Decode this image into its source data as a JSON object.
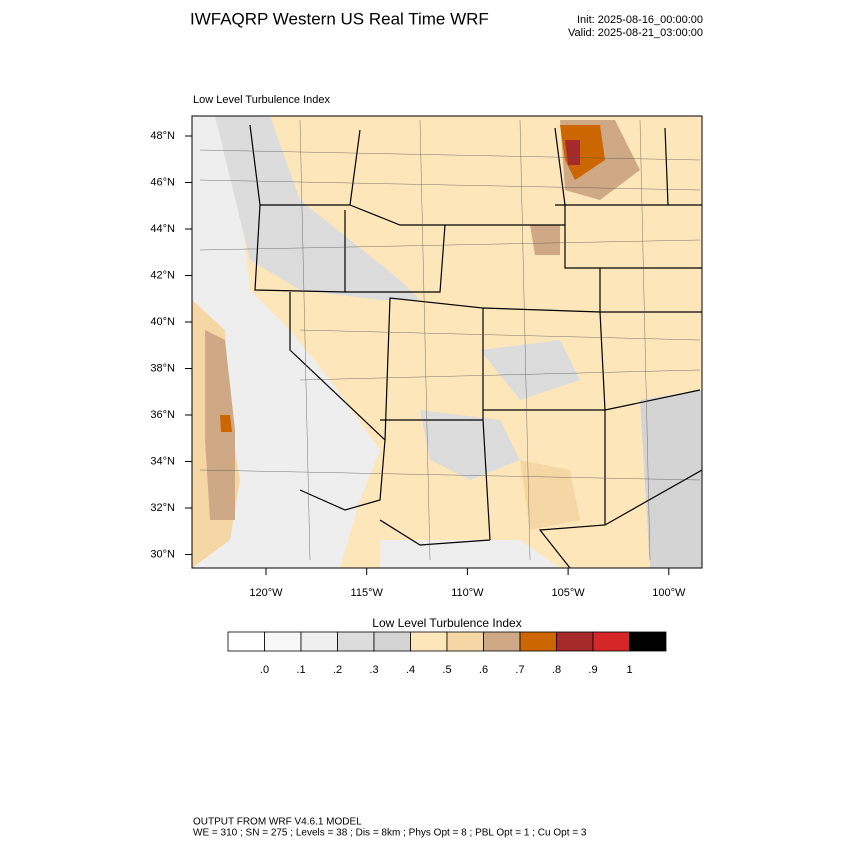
{
  "header": {
    "title": "IWFAQRP Western US Real Time WRF",
    "init": "Init: 2025-08-16_00:00:00",
    "valid": "Valid: 2025-08-21_03:00:00"
  },
  "map": {
    "subtitle": "Low Level Turbulence Index",
    "lat_labels": [
      "48°N",
      "46°N",
      "44°N",
      "42°N",
      "40°N",
      "38°N",
      "36°N",
      "34°N",
      "32°N",
      "30°N"
    ],
    "lon_labels": [
      "120°W",
      "115°W",
      "110°W",
      "105°W",
      "100°W"
    ]
  },
  "colorbar": {
    "title": "Low Level Turbulence Index",
    "colors": [
      "#ffffff",
      "#f8f8f8",
      "#efefef",
      "#dcdcdc",
      "#d4d4d4",
      "#fee6bb",
      "#f5d7a6",
      "#cfa985",
      "#cc6600",
      "#a52a2a",
      "#d62728",
      "#000000"
    ],
    "labels": [
      ".0",
      ".1",
      ".2",
      ".3",
      ".4",
      ".5",
      ".6",
      ".7",
      ".8",
      ".9",
      "1"
    ]
  },
  "footer": {
    "line1": "OUTPUT FROM WRF V4.6.1 MODEL",
    "line2": "WE = 310 ; SN = 275 ; Levels = 38 ; Dis = 8km ; Phys Opt = 8 ; PBL Opt = 1 ; Cu Opt = 3"
  }
}
